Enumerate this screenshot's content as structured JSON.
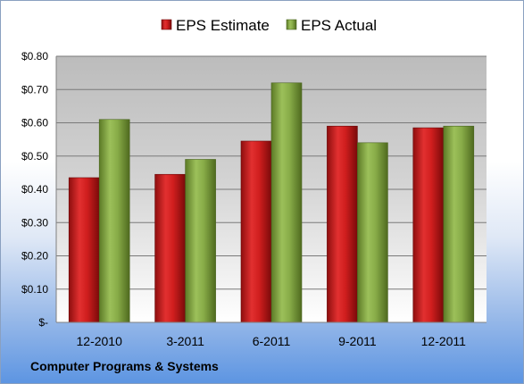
{
  "caption": "Computer Programs & Systems",
  "colors": {
    "estimate": "#d42020",
    "actual": "#8cb04a"
  },
  "chart_data": {
    "type": "bar",
    "categories": [
      "12-2010",
      "3-2011",
      "6-2011",
      "9-2011",
      "12-2011"
    ],
    "series": [
      {
        "name": "EPS Estimate",
        "values": [
          0.435,
          0.445,
          0.545,
          0.59,
          0.585
        ]
      },
      {
        "name": "EPS Actual",
        "values": [
          0.61,
          0.49,
          0.72,
          0.54,
          0.59
        ]
      }
    ],
    "ylim": [
      0,
      0.8
    ],
    "yticks": [
      0,
      0.1,
      0.2,
      0.3,
      0.4,
      0.5,
      0.6,
      0.7,
      0.8
    ],
    "ytick_labels": [
      "$-",
      "$0.10",
      "$0.20",
      "$0.30",
      "$0.40",
      "$0.50",
      "$0.60",
      "$0.70",
      "$0.80"
    ],
    "grid": true,
    "legend_position": "top"
  }
}
